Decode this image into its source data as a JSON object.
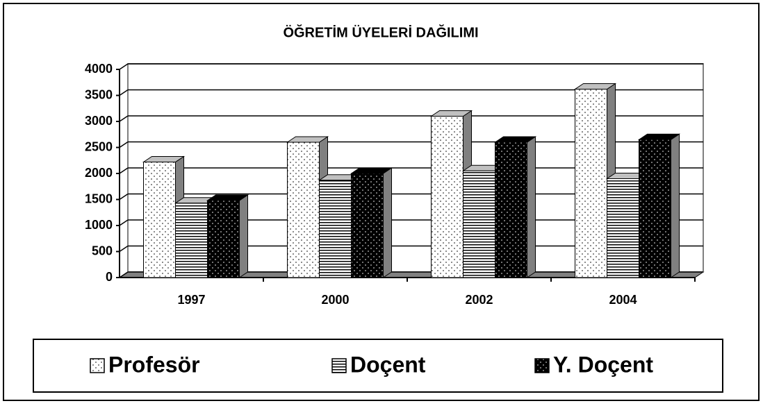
{
  "chart_data": {
    "type": "bar3d",
    "title": "ÖĞRETİM ÜYELERİ DAĞILIMI",
    "categories": [
      "1997",
      "2000",
      "2002",
      "2004"
    ],
    "series": [
      {
        "name": "Profesör",
        "color": "#ffffff",
        "pattern": "dots",
        "values": [
          2220,
          2600,
          3100,
          3620
        ]
      },
      {
        "name": "Doçent",
        "color": "#ffffff",
        "pattern": "hlines",
        "values": [
          1430,
          1870,
          2050,
          1900
        ]
      },
      {
        "name": "Y. Doçent",
        "color": "#000000",
        "pattern": "dots-light",
        "values": [
          1480,
          2000,
          2600,
          2650
        ]
      }
    ],
    "ylim": [
      0,
      4000
    ],
    "yticks": [
      0,
      500,
      1000,
      1500,
      2000,
      2500,
      3000,
      3500,
      4000
    ],
    "grid": true,
    "legend": "bottom"
  }
}
